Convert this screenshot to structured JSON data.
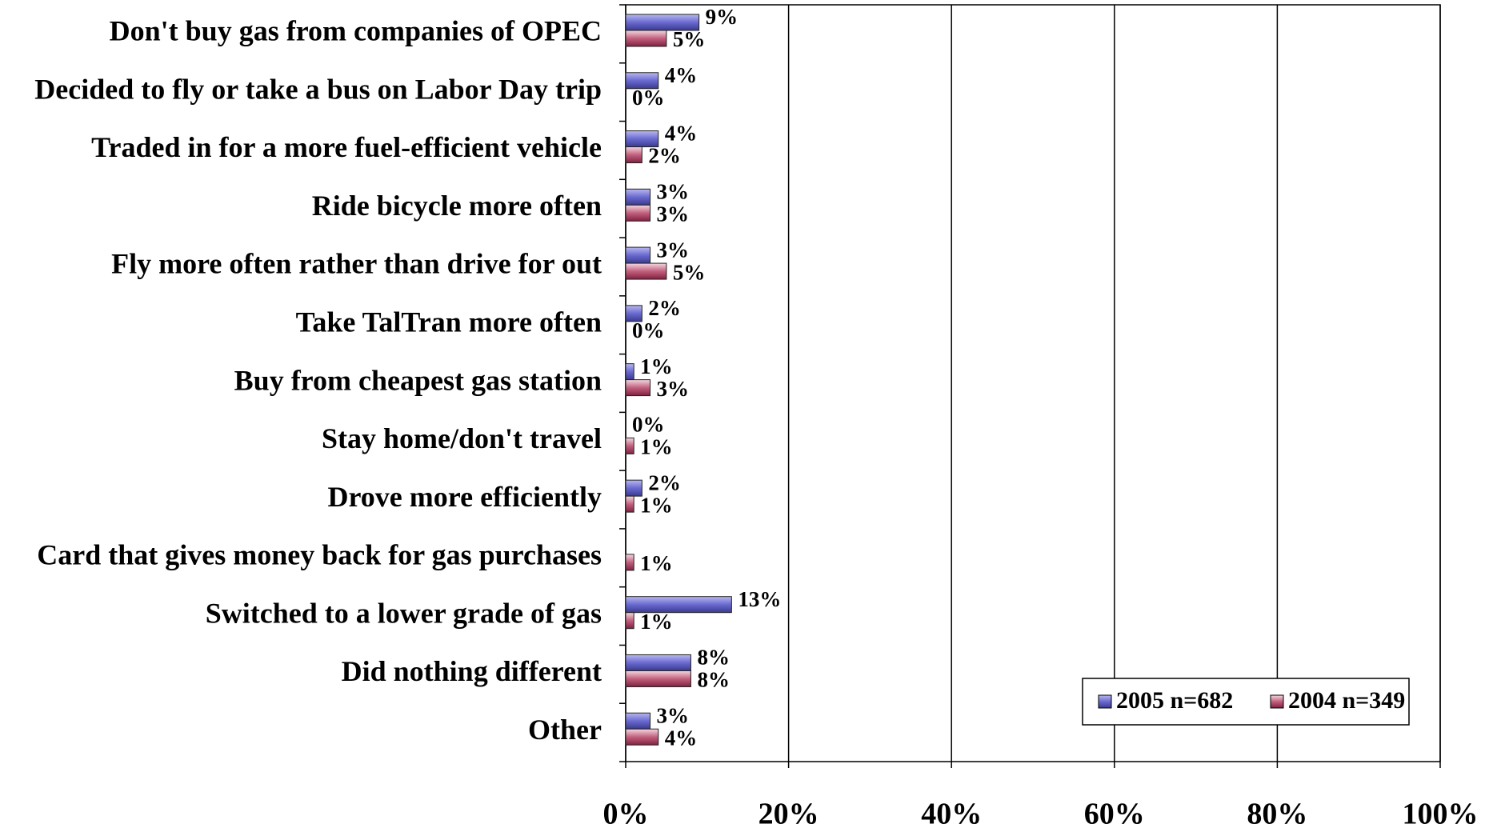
{
  "chart_data": {
    "type": "hbar",
    "categories": [
      "Don't buy gas from companies of OPEC",
      "Decided to fly or take a bus on Labor Day trip",
      "Traded in for a more fuel-efficient vehicle",
      "Ride bicycle more often",
      "Fly more often rather than drive for out",
      "Take TalTran more often",
      "Buy from cheapest gas station",
      "Stay home/don't travel",
      "Drove more efficiently",
      "Card that gives money back for gas purchases",
      "Switched to a lower grade of gas",
      "Did nothing different",
      "Other"
    ],
    "series": [
      {
        "name": "2005 n=682",
        "color": "#6a6ad0",
        "values": [
          9,
          4,
          4,
          3,
          3,
          2,
          1,
          0,
          2,
          null,
          13,
          8,
          3
        ],
        "value_labels": [
          "9%",
          "4%",
          "4%",
          "3%",
          "3%",
          "2%",
          "1%",
          "0%",
          "2%",
          null,
          "13%",
          "8%",
          "3%"
        ]
      },
      {
        "name": "2004 n=349",
        "color": "#c2607e",
        "values": [
          5,
          0,
          2,
          3,
          5,
          0,
          3,
          1,
          1,
          1,
          1,
          8,
          4
        ],
        "value_labels": [
          "5%",
          "0%",
          "2%",
          "3%",
          "5%",
          "0%",
          "3%",
          "1%",
          "1%",
          "1%",
          "1%",
          "8%",
          "4%"
        ]
      }
    ],
    "xlim": [
      0,
      100
    ],
    "xticks": [
      {
        "value": 0,
        "label": "0%"
      },
      {
        "value": 20,
        "label": "20%"
      },
      {
        "value": 40,
        "label": "40%"
      },
      {
        "value": 60,
        "label": "60%"
      },
      {
        "value": 80,
        "label": "80%"
      },
      {
        "value": 100,
        "label": "100%"
      }
    ],
    "grid": true,
    "legend": "lower right"
  }
}
